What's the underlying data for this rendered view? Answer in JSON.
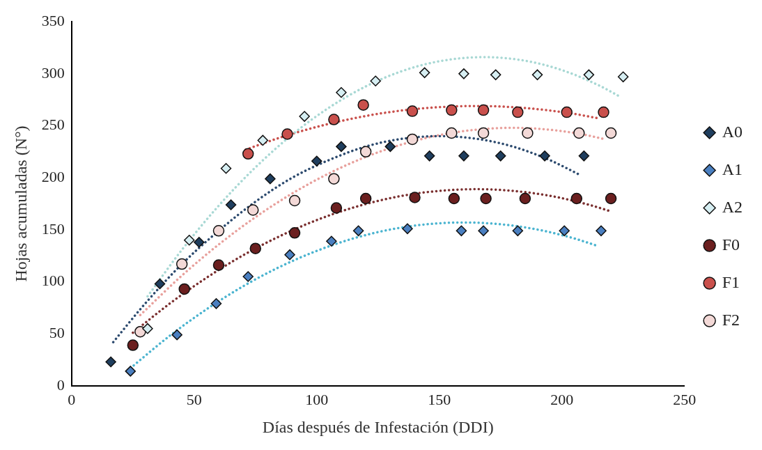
{
  "chart_data": {
    "type": "scatter",
    "xlabel": "Días después de Infestación (DDI)",
    "ylabel": "Hojas acumuladas (N°)",
    "xlim": [
      0,
      250
    ],
    "xticks": [
      0,
      50,
      100,
      150,
      200,
      250
    ],
    "ylim": [
      0,
      350
    ],
    "yticks": [
      0,
      50,
      100,
      150,
      200,
      250,
      300,
      350
    ],
    "grid": false,
    "legend": "right",
    "series": [
      {
        "name": "A0",
        "marker": "diamond",
        "color": "#1f3e5e",
        "x": [
          16,
          36,
          52,
          65,
          81,
          100,
          110,
          130,
          146,
          160,
          175,
          193,
          209
        ],
        "values": [
          23,
          98,
          138,
          174,
          199,
          216,
          230,
          230,
          221,
          221,
          221,
          221,
          221
        ]
      },
      {
        "name": "A1",
        "marker": "diamond",
        "color": "#4a7fc0",
        "x": [
          24,
          43,
          59,
          72,
          89,
          106,
          117,
          137,
          159,
          168,
          182,
          201,
          216
        ],
        "values": [
          14,
          49,
          79,
          105,
          126,
          139,
          149,
          151,
          149,
          149,
          149,
          149,
          149
        ]
      },
      {
        "name": "A2",
        "marker": "diamond",
        "color": "#d6eef2",
        "x": [
          31,
          48,
          63,
          78,
          95,
          110,
          124,
          144,
          160,
          173,
          190,
          211,
          225
        ],
        "values": [
          55,
          140,
          209,
          236,
          259,
          282,
          293,
          301,
          300,
          299,
          299,
          299,
          297
        ]
      },
      {
        "name": "F0",
        "marker": "circle",
        "color": "#6b1f1f",
        "x": [
          25,
          46,
          60,
          75,
          91,
          108,
          120,
          140,
          156,
          169,
          185,
          206,
          220
        ],
        "values": [
          39,
          93,
          116,
          132,
          147,
          171,
          180,
          181,
          180,
          180,
          180,
          180,
          180
        ]
      },
      {
        "name": "F1",
        "marker": "circle",
        "color": "#c9504c",
        "x": [
          72,
          88,
          107,
          119,
          139,
          155,
          168,
          182,
          202,
          217
        ],
        "values": [
          223,
          242,
          256,
          270,
          264,
          265,
          265,
          263,
          263,
          263
        ]
      },
      {
        "name": "F2",
        "marker": "circle",
        "color": "#f3d9d7",
        "x": [
          28,
          45,
          60,
          74,
          91,
          107,
          120,
          139,
          155,
          168,
          186,
          207,
          220
        ],
        "values": [
          52,
          117,
          149,
          169,
          178,
          199,
          225,
          237,
          243,
          243,
          243,
          243,
          243
        ]
      },
      {
        "type": "line",
        "marker": "none",
        "line_style": "dotted",
        "color": "#2c4a6e",
        "x": [
          17,
          30,
          45,
          60,
          75,
          90,
          105,
          120,
          135,
          150,
          165,
          180,
          195,
          208
        ],
        "values": [
          42,
          79,
          117,
          149,
          177,
          200,
          217,
          230,
          237.5,
          240,
          237.5,
          230,
          217,
          202
        ]
      },
      {
        "type": "line",
        "marker": "none",
        "line_style": "dotted",
        "color": "#4bb4d0",
        "x": [
          24,
          40,
          55,
          70,
          85,
          100,
          115,
          130,
          145,
          160,
          175,
          190,
          205,
          214
        ],
        "values": [
          17,
          48,
          73.5,
          95.7,
          114.4,
          129.7,
          141.7,
          150.2,
          155.3,
          157,
          155.3,
          150.2,
          141.7,
          134.9
        ]
      },
      {
        "type": "line",
        "marker": "none",
        "line_style": "dotted",
        "color": "#a8d8d4",
        "x": [
          31,
          45,
          60,
          75,
          90,
          105,
          120,
          135,
          150,
          168,
          185,
          200,
          215,
          224
        ],
        "values": [
          86,
          130.7,
          173.1,
          210,
          241.5,
          267.4,
          287.8,
          302.7,
          312,
          316,
          312.5,
          303.5,
          288.9,
          277.6
        ]
      },
      {
        "type": "line",
        "marker": "none",
        "line_style": "dotted",
        "color": "#7a2f2f",
        "x": [
          25,
          40,
          55,
          70,
          85,
          100,
          115,
          130,
          145,
          165,
          180,
          195,
          210,
          220
        ],
        "values": [
          51,
          79,
          103.8,
          125.5,
          143.9,
          159.3,
          171.4,
          180.4,
          186.2,
          189,
          187.4,
          182.7,
          174.7,
          167.7
        ]
      },
      {
        "type": "line",
        "marker": "none",
        "line_style": "dotted",
        "color": "#c9504c",
        "x": [
          71,
          85,
          100,
          115,
          130,
          145,
          165,
          180,
          195,
          205,
          215
        ],
        "values": [
          227,
          238.6,
          248.9,
          257.1,
          263.2,
          267.1,
          269,
          267.9,
          264.7,
          261.4,
          257.1
        ]
      },
      {
        "type": "line",
        "marker": "none",
        "line_style": "dotted",
        "color": "#e8a09c",
        "x": [
          28,
          45,
          60,
          75,
          90,
          105,
          120,
          135,
          150,
          165,
          180,
          195,
          208,
          218
        ],
        "values": [
          68,
          106,
          135.8,
          162.1,
          184.9,
          204.2,
          220,
          232.2,
          241,
          246.2,
          248,
          246.2,
          241.9,
          236.8
        ]
      }
    ]
  }
}
